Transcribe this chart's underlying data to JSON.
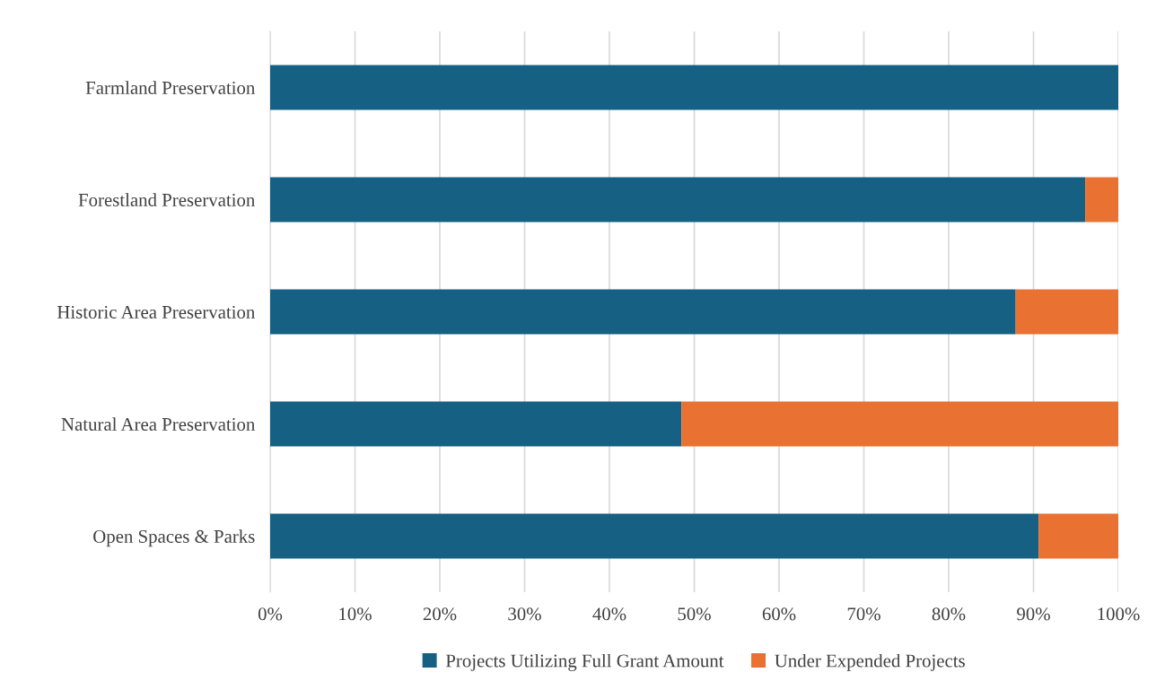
{
  "chart_data": {
    "type": "bar",
    "orientation": "horizontal",
    "stacked": true,
    "categories": [
      "Farmland Preservation",
      "Forestland Preservation",
      "Historic Area Preservation",
      "Natural Area Preservation",
      "Open Spaces & Parks"
    ],
    "series": [
      {
        "name": "Projects Utilizing Full Grant Amount",
        "color": "#166083",
        "values": [
          100,
          96.1,
          87.9,
          48.5,
          90.6
        ]
      },
      {
        "name": "Under Expended Projects",
        "color": "#e97132",
        "values": [
          0,
          3.9,
          12.1,
          51.5,
          9.4
        ]
      }
    ],
    "xlim": [
      0,
      100
    ],
    "xticks": [
      {
        "value": 0,
        "label": "0%"
      },
      {
        "value": 10,
        "label": "10%"
      },
      {
        "value": 20,
        "label": "20%"
      },
      {
        "value": 30,
        "label": "30%"
      },
      {
        "value": 40,
        "label": "40%"
      },
      {
        "value": 50,
        "label": "50%"
      },
      {
        "value": 60,
        "label": "60%"
      },
      {
        "value": 70,
        "label": "70%"
      },
      {
        "value": 80,
        "label": "80%"
      },
      {
        "value": 90,
        "label": "90%"
      },
      {
        "value": 100,
        "label": "100%"
      }
    ],
    "grid": "x",
    "legend": "bottom"
  }
}
